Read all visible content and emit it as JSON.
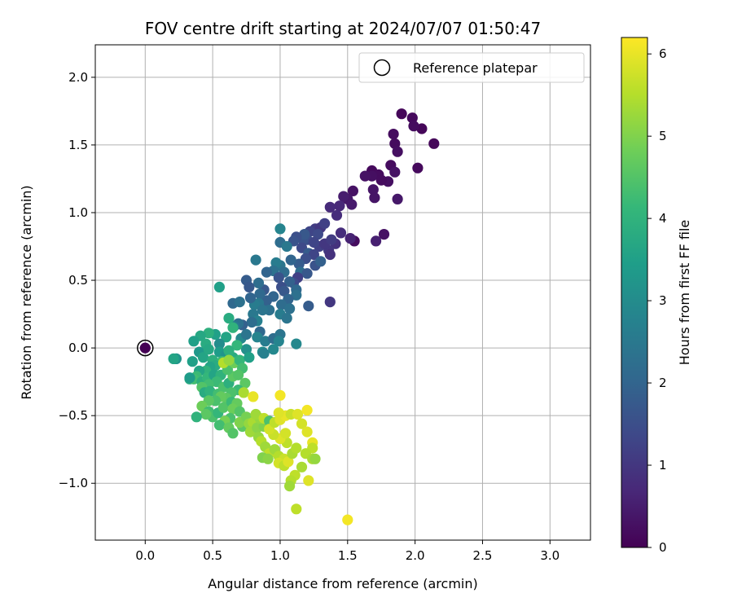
{
  "chart_data": {
    "type": "scatter",
    "title": "FOV centre drift starting at 2024/07/07 01:50:47",
    "xlabel": "Angular distance from reference (arcmin)",
    "ylabel": "Rotation from reference (arcmin)",
    "xlim": [
      -0.37,
      3.3
    ],
    "ylim": [
      -1.42,
      2.24
    ],
    "xticks": [
      0.0,
      0.5,
      1.0,
      1.5,
      2.0,
      2.5,
      3.0
    ],
    "xtick_labels": [
      "0.0",
      "0.5",
      "1.0",
      "1.5",
      "2.0",
      "2.5",
      "3.0"
    ],
    "yticks": [
      -1.0,
      -0.5,
      0.0,
      0.5,
      1.0,
      1.5,
      2.0
    ],
    "ytick_labels": [
      "−1.0",
      "−0.5",
      "0.0",
      "0.5",
      "1.0",
      "1.5",
      "2.0"
    ],
    "grid": true,
    "legend": {
      "placement": "top-right",
      "entries": [
        {
          "label": "Reference platepar",
          "marker": "open-circle"
        }
      ]
    },
    "colorbar": {
      "label": "Hours from first FF file",
      "range": [
        0,
        6.2
      ],
      "ticks": [
        0,
        1,
        2,
        3,
        4,
        5,
        6
      ],
      "tick_labels": [
        "0",
        "1",
        "2",
        "3",
        "4",
        "5",
        "6"
      ],
      "colormap": "viridis",
      "colors": [
        "#440154",
        "#482878",
        "#3e4989",
        "#31688e",
        "#26828e",
        "#1f9e89",
        "#35b779",
        "#6ece58",
        "#b5de2b",
        "#fde725"
      ]
    },
    "reference_point": {
      "x": 0.0,
      "y": 0.0,
      "label": "Reference platepar"
    },
    "points": [
      [
        1.9,
        1.73,
        0.1
      ],
      [
        1.98,
        1.7,
        0.15
      ],
      [
        2.05,
        1.62,
        0.1
      ],
      [
        1.99,
        1.64,
        0.2
      ],
      [
        2.14,
        1.51,
        0.1
      ],
      [
        1.84,
        1.58,
        0.2
      ],
      [
        1.85,
        1.51,
        0.2
      ],
      [
        1.87,
        1.45,
        0.25
      ],
      [
        2.02,
        1.33,
        0.15
      ],
      [
        1.82,
        1.35,
        0.2
      ],
      [
        1.85,
        1.3,
        0.3
      ],
      [
        1.8,
        1.23,
        0.25
      ],
      [
        1.68,
        1.31,
        0.15
      ],
      [
        1.73,
        1.28,
        0.2
      ],
      [
        1.68,
        1.27,
        0.25
      ],
      [
        1.75,
        1.24,
        0.2
      ],
      [
        1.63,
        1.27,
        0.3
      ],
      [
        1.54,
        1.16,
        0.3
      ],
      [
        1.69,
        1.17,
        0.35
      ],
      [
        1.87,
        1.1,
        0.4
      ],
      [
        1.5,
        1.1,
        0.4
      ],
      [
        1.47,
        1.12,
        0.5
      ],
      [
        1.53,
        1.06,
        0.45
      ],
      [
        1.7,
        1.11,
        0.35
      ],
      [
        1.77,
        0.84,
        0.3
      ],
      [
        1.71,
        0.79,
        0.55
      ],
      [
        1.55,
        0.79,
        0.2
      ],
      [
        1.52,
        0.81,
        0.6
      ],
      [
        1.44,
        1.05,
        0.7
      ],
      [
        1.37,
        1.04,
        0.75
      ],
      [
        1.42,
        0.98,
        0.8
      ],
      [
        1.45,
        0.85,
        0.8
      ],
      [
        1.41,
        0.77,
        0.9
      ],
      [
        1.36,
        0.72,
        1.0
      ],
      [
        1.37,
        0.69,
        0.9
      ],
      [
        1.29,
        0.75,
        1.2
      ],
      [
        1.33,
        0.77,
        1.0
      ],
      [
        1.38,
        0.8,
        1.1
      ],
      [
        1.26,
        0.88,
        1.1
      ],
      [
        1.3,
        0.89,
        1.0
      ],
      [
        1.33,
        0.92,
        1.2
      ],
      [
        1.22,
        0.86,
        1.3
      ],
      [
        1.28,
        0.84,
        1.4
      ],
      [
        1.2,
        0.8,
        1.5
      ],
      [
        1.25,
        0.78,
        1.3
      ],
      [
        1.17,
        0.8,
        1.6
      ],
      [
        1.18,
        0.84,
        1.7
      ],
      [
        1.12,
        0.82,
        1.5
      ],
      [
        1.1,
        0.79,
        1.6
      ],
      [
        1.16,
        0.74,
        1.4
      ],
      [
        1.21,
        0.7,
        1.8
      ],
      [
        1.25,
        0.69,
        1.3
      ],
      [
        1.19,
        0.66,
        1.5
      ],
      [
        1.26,
        0.61,
        1.6
      ],
      [
        1.3,
        0.64,
        1.9
      ],
      [
        1.14,
        0.62,
        1.8
      ],
      [
        1.08,
        0.65,
        2.0
      ],
      [
        1.0,
        0.78,
        2.2
      ],
      [
        1.0,
        0.88,
        2.8
      ],
      [
        1.05,
        0.75,
        2.5
      ],
      [
        1.15,
        0.56,
        2.2
      ],
      [
        1.2,
        0.55,
        1.7
      ],
      [
        1.13,
        0.52,
        1.2
      ],
      [
        1.1,
        0.48,
        1.4
      ],
      [
        1.0,
        0.61,
        2.4
      ],
      [
        0.97,
        0.63,
        2.6
      ],
      [
        0.95,
        0.57,
        2.3
      ],
      [
        0.9,
        0.56,
        2.0
      ],
      [
        1.03,
        0.56,
        2.2
      ],
      [
        0.99,
        0.52,
        1.6
      ],
      [
        1.07,
        0.49,
        1.9
      ],
      [
        1.01,
        0.45,
        1.5
      ],
      [
        1.03,
        0.42,
        1.7
      ],
      [
        1.12,
        0.43,
        2.1
      ],
      [
        1.12,
        0.39,
        2.3
      ],
      [
        1.21,
        0.31,
        1.8
      ],
      [
        1.37,
        0.34,
        1.0
      ],
      [
        1.06,
        0.36,
        2.0
      ],
      [
        1.01,
        0.32,
        2.2
      ],
      [
        1.07,
        0.29,
        2.3
      ],
      [
        1.0,
        0.25,
        2.6
      ],
      [
        1.05,
        0.22,
        2.4
      ],
      [
        0.95,
        0.38,
        2.0
      ],
      [
        0.9,
        0.35,
        1.9
      ],
      [
        0.92,
        0.28,
        2.3
      ],
      [
        0.88,
        0.43,
        1.7
      ],
      [
        0.84,
        0.48,
        2.2
      ],
      [
        0.75,
        0.5,
        1.8
      ],
      [
        0.77,
        0.45,
        1.7
      ],
      [
        0.85,
        0.4,
        2.1
      ],
      [
        0.84,
        0.33,
        2.5
      ],
      [
        0.81,
        0.32,
        2.6
      ],
      [
        0.78,
        0.37,
        2.0
      ],
      [
        0.87,
        0.28,
        2.4
      ],
      [
        0.8,
        0.25,
        2.5
      ],
      [
        0.83,
        0.2,
        2.7
      ],
      [
        0.79,
        0.19,
        2.2
      ],
      [
        0.72,
        0.17,
        1.9
      ],
      [
        0.69,
        0.18,
        2.3
      ],
      [
        0.66,
        0.16,
        2.6
      ],
      [
        0.71,
        0.07,
        2.9
      ],
      [
        0.75,
        0.1,
        2.4
      ],
      [
        0.85,
        0.12,
        2.1
      ],
      [
        0.83,
        0.08,
        2.8
      ],
      [
        0.89,
        0.05,
        2.6
      ],
      [
        0.95,
        0.07,
        2.2
      ],
      [
        1.0,
        0.1,
        2.4
      ],
      [
        0.99,
        0.05,
        2.8
      ],
      [
        0.95,
        -0.01,
        2.9
      ],
      [
        0.87,
        -0.03,
        3.0
      ],
      [
        0.88,
        -0.04,
        2.7
      ],
      [
        0.75,
        -0.01,
        3.1
      ],
      [
        1.12,
        0.03,
        2.9
      ],
      [
        0.82,
        0.65,
        2.5
      ],
      [
        0.65,
        0.33,
        2.1
      ],
      [
        0.7,
        0.34,
        2.3
      ],
      [
        0.55,
        0.45,
        3.5
      ],
      [
        0.62,
        0.22,
        3.8
      ],
      [
        0.65,
        0.15,
        4.0
      ],
      [
        0.6,
        0.08,
        3.6
      ],
      [
        0.55,
        0.03,
        3.0
      ],
      [
        0.52,
        0.1,
        3.5
      ],
      [
        0.47,
        0.11,
        3.9
      ],
      [
        0.41,
        0.09,
        3.7
      ],
      [
        0.36,
        0.05,
        3.5
      ],
      [
        0.45,
        0.03,
        3.8
      ],
      [
        0.4,
        -0.03,
        3.3
      ],
      [
        0.43,
        -0.07,
        3.6
      ],
      [
        0.5,
        -0.09,
        3.9
      ],
      [
        0.47,
        -0.01,
        3.7
      ],
      [
        0.55,
        -0.03,
        3.4
      ],
      [
        0.6,
        -0.05,
        3.2
      ],
      [
        0.65,
        -0.07,
        3.8
      ],
      [
        0.68,
        0.02,
        4.1
      ],
      [
        0.62,
        -0.02,
        3.9
      ],
      [
        0.57,
        -0.1,
        4.2
      ],
      [
        0.52,
        -0.13,
        3.8
      ],
      [
        0.48,
        -0.14,
        3.6
      ],
      [
        0.45,
        -0.17,
        4.0
      ],
      [
        0.4,
        -0.17,
        3.6
      ],
      [
        0.35,
        -0.1,
        3.5
      ],
      [
        0.38,
        -0.21,
        4.2
      ],
      [
        0.33,
        -0.23,
        3.8
      ],
      [
        0.36,
        -0.23,
        4.3
      ],
      [
        0.42,
        -0.25,
        3.9
      ],
      [
        0.46,
        -0.22,
        4.1
      ],
      [
        0.51,
        -0.2,
        3.6
      ],
      [
        0.56,
        -0.2,
        4.0
      ],
      [
        0.53,
        -0.25,
        4.2
      ],
      [
        0.47,
        -0.27,
        4.3
      ],
      [
        0.42,
        -0.29,
        4.5
      ],
      [
        0.44,
        -0.33,
        3.8
      ],
      [
        0.48,
        -0.32,
        4.0
      ],
      [
        0.54,
        -0.34,
        4.3
      ],
      [
        0.58,
        -0.29,
        4.4
      ],
      [
        0.62,
        -0.26,
        3.9
      ],
      [
        0.65,
        -0.21,
        4.6
      ],
      [
        0.61,
        -0.16,
        4.4
      ],
      [
        0.66,
        -0.11,
        4.8
      ],
      [
        0.7,
        -0.09,
        4.1
      ],
      [
        0.77,
        -0.07,
        3.5
      ],
      [
        0.72,
        -0.15,
        4.3
      ],
      [
        0.69,
        -0.2,
        4.5
      ],
      [
        0.74,
        -0.26,
        4.6
      ],
      [
        0.69,
        -0.31,
        4.2
      ],
      [
        0.64,
        -0.33,
        4.4
      ],
      [
        0.6,
        -0.37,
        4.6
      ],
      [
        0.56,
        -0.36,
        4.7
      ],
      [
        0.52,
        -0.39,
        4.4
      ],
      [
        0.47,
        -0.39,
        4.6
      ],
      [
        0.42,
        -0.43,
        4.8
      ],
      [
        0.47,
        -0.47,
        4.3
      ],
      [
        0.5,
        -0.51,
        4.4
      ],
      [
        0.45,
        -0.49,
        4.6
      ],
      [
        0.38,
        -0.51,
        4.0
      ],
      [
        0.54,
        -0.48,
        4.1
      ],
      [
        0.58,
        -0.44,
        4.5
      ],
      [
        0.64,
        -0.4,
        4.2
      ],
      [
        0.68,
        -0.41,
        4.7
      ],
      [
        0.65,
        -0.45,
        4.8
      ],
      [
        0.7,
        -0.47,
        4.5
      ],
      [
        0.63,
        -0.52,
        4.4
      ],
      [
        0.59,
        -0.54,
        4.9
      ],
      [
        0.55,
        -0.57,
        4.3
      ],
      [
        0.62,
        -0.59,
        4.7
      ],
      [
        0.65,
        -0.63,
        4.5
      ],
      [
        0.72,
        -0.58,
        4.6
      ],
      [
        0.7,
        -0.55,
        5.0
      ],
      [
        0.75,
        -0.51,
        4.9
      ],
      [
        0.77,
        -0.56,
        5.2
      ],
      [
        0.8,
        -0.55,
        5.4
      ],
      [
        0.78,
        -0.62,
        5.3
      ],
      [
        0.83,
        -0.59,
        5.1
      ],
      [
        0.88,
        -0.58,
        5.0
      ],
      [
        0.85,
        -0.52,
        5.2
      ],
      [
        0.82,
        -0.49,
        5.3
      ],
      [
        0.88,
        -0.52,
        5.6
      ],
      [
        0.92,
        -0.54,
        4.4
      ],
      [
        0.84,
        -0.66,
        5.2
      ],
      [
        0.86,
        -0.69,
        5.5
      ],
      [
        0.89,
        -0.73,
        5.3
      ],
      [
        0.92,
        -0.78,
        5.6
      ],
      [
        0.87,
        -0.81,
        5.0
      ],
      [
        0.91,
        -0.82,
        5.1
      ],
      [
        0.96,
        -0.75,
        5.3
      ],
      [
        0.99,
        -0.8,
        5.5
      ],
      [
        1.03,
        -0.82,
        5.7
      ],
      [
        0.99,
        -0.85,
        5.8
      ],
      [
        1.03,
        -0.87,
        5.6
      ],
      [
        1.06,
        -0.84,
        5.9
      ],
      [
        1.09,
        -0.78,
        5.4
      ],
      [
        1.12,
        -0.74,
        5.5
      ],
      [
        1.05,
        -0.7,
        5.6
      ],
      [
        1.0,
        -0.67,
        5.9
      ],
      [
        0.95,
        -0.64,
        5.7
      ],
      [
        0.92,
        -0.6,
        5.8
      ],
      [
        0.96,
        -0.55,
        5.6
      ],
      [
        1.0,
        -0.53,
        5.9
      ],
      [
        1.04,
        -0.5,
        6.0
      ],
      [
        1.08,
        -0.49,
        5.7
      ],
      [
        1.13,
        -0.49,
        5.9
      ],
      [
        1.2,
        -0.46,
        6.1
      ],
      [
        1.16,
        -0.56,
        5.8
      ],
      [
        1.2,
        -0.62,
        5.9
      ],
      [
        1.24,
        -0.7,
        6.0
      ],
      [
        1.24,
        -0.74,
        5.6
      ],
      [
        1.19,
        -0.78,
        5.5
      ],
      [
        1.24,
        -0.82,
        5.4
      ],
      [
        1.26,
        -0.82,
        5.2
      ],
      [
        1.16,
        -0.88,
        5.4
      ],
      [
        1.11,
        -0.94,
        5.6
      ],
      [
        1.08,
        -0.98,
        5.5
      ],
      [
        1.07,
        -1.02,
        5.3
      ],
      [
        1.21,
        -0.98,
        5.9
      ],
      [
        1.12,
        -1.19,
        5.6
      ],
      [
        1.5,
        -1.27,
        6.1
      ],
      [
        1.0,
        -0.35,
        6.1
      ],
      [
        0.99,
        -0.48,
        5.9
      ],
      [
        1.04,
        -0.63,
        5.8
      ],
      [
        0.73,
        -0.33,
        5.4
      ],
      [
        0.8,
        -0.36,
        6.0
      ],
      [
        0.58,
        -0.11,
        5.5
      ],
      [
        0.62,
        -0.09,
        5.2
      ],
      [
        0.23,
        -0.08,
        3.2
      ],
      [
        0.21,
        -0.08,
        3.6
      ],
      [
        0.33,
        -0.22,
        3.4
      ]
    ]
  }
}
